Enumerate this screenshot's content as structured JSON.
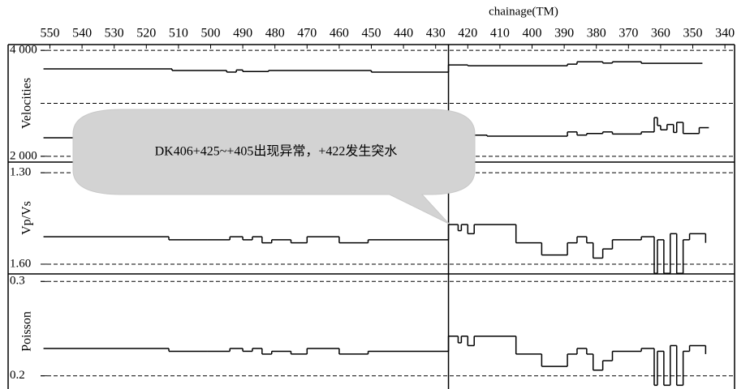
{
  "chart_data": [
    {
      "type": "line",
      "drawstyle": "steps-post",
      "ylabel": "Velocities",
      "xlabel": "chainage(TM)",
      "xlim": [
        563,
        337
      ],
      "xticks": [
        550,
        540,
        530,
        520,
        510,
        500,
        490,
        480,
        470,
        460,
        450,
        440,
        430,
        420,
        410,
        400,
        390,
        380,
        370,
        360,
        350,
        340
      ],
      "ylim": [
        1890,
        4110
      ],
      "yticks": [
        {
          "value": 2000,
          "label": "2 000"
        },
        {
          "value": 4000,
          "label": "4 000"
        }
      ],
      "ygrid": [
        2000,
        3000,
        4000
      ],
      "vline": 426,
      "annotation": "DK406+425~+405出现异常，+422发生突水",
      "series": [
        {
          "color": "#000000",
          "x": [
            552,
            512,
            495,
            492,
            490,
            482,
            450,
            426,
            420,
            389,
            386,
            378,
            375,
            366,
            347
          ],
          "values": [
            3650,
            3620,
            3590,
            3630,
            3600,
            3620,
            3590,
            3725,
            3710,
            3740,
            3785,
            3760,
            3785,
            3755,
            3755
          ]
        },
        {
          "color": "#000000",
          "x": [
            552,
            426,
            414,
            389,
            386,
            383,
            378,
            375,
            366,
            362,
            361,
            360,
            358,
            356,
            355,
            353,
            350,
            348,
            345
          ],
          "values": [
            2350,
            2400,
            2380,
            2460,
            2400,
            2430,
            2460,
            2420,
            2460,
            2730,
            2580,
            2500,
            2600,
            2450,
            2640,
            2430,
            2430,
            2540,
            2540
          ]
        }
      ]
    },
    {
      "type": "line",
      "drawstyle": "steps-post",
      "ylabel": "Vp/Vs",
      "ylim": [
        1.632,
        1.265
      ],
      "yticks": [
        {
          "value": 1.3,
          "label": "1.30"
        },
        {
          "value": 1.6,
          "label": "1.60"
        }
      ],
      "ygrid": [
        1.3,
        1.6
      ],
      "series": [
        {
          "color": "#000000",
          "x": [
            552,
            513,
            501,
            494,
            490,
            487,
            484,
            481,
            475,
            470,
            460,
            451,
            426,
            423,
            422,
            420,
            418,
            405,
            397,
            389,
            386,
            383,
            381,
            378,
            375,
            366,
            362,
            361,
            359,
            357,
            355,
            353,
            351,
            346
          ],
          "values": [
            1.51,
            1.52,
            1.52,
            1.51,
            1.52,
            1.51,
            1.53,
            1.52,
            1.53,
            1.51,
            1.53,
            1.52,
            1.47,
            1.49,
            1.47,
            1.5,
            1.47,
            1.53,
            1.57,
            1.53,
            1.51,
            1.53,
            1.58,
            1.55,
            1.52,
            1.51,
            1.63,
            1.52,
            1.63,
            1.5,
            1.63,
            1.52,
            1.5,
            1.53
          ]
        }
      ]
    },
    {
      "type": "line",
      "drawstyle": "steps-post",
      "ylabel": "Poisson",
      "ylim": [
        0.186,
        0.308
      ],
      "yticks": [
        0.2,
        0.3
      ],
      "ygrid": [
        0.2,
        0.3
      ],
      "series": [
        {
          "color": "#000000",
          "x": [
            552,
            513,
            501,
            494,
            490,
            487,
            484,
            481,
            475,
            470,
            460,
            451,
            426,
            423,
            422,
            420,
            418,
            405,
            397,
            389,
            386,
            383,
            381,
            378,
            375,
            366,
            362,
            361,
            359,
            357,
            355,
            353,
            351,
            346
          ],
          "values": [
            0.229,
            0.226,
            0.226,
            0.229,
            0.226,
            0.229,
            0.223,
            0.226,
            0.223,
            0.229,
            0.223,
            0.226,
            0.242,
            0.235,
            0.242,
            0.232,
            0.242,
            0.223,
            0.21,
            0.223,
            0.229,
            0.223,
            0.206,
            0.216,
            0.226,
            0.229,
            0.19,
            0.226,
            0.19,
            0.232,
            0.19,
            0.226,
            0.232,
            0.223
          ]
        }
      ]
    }
  ]
}
